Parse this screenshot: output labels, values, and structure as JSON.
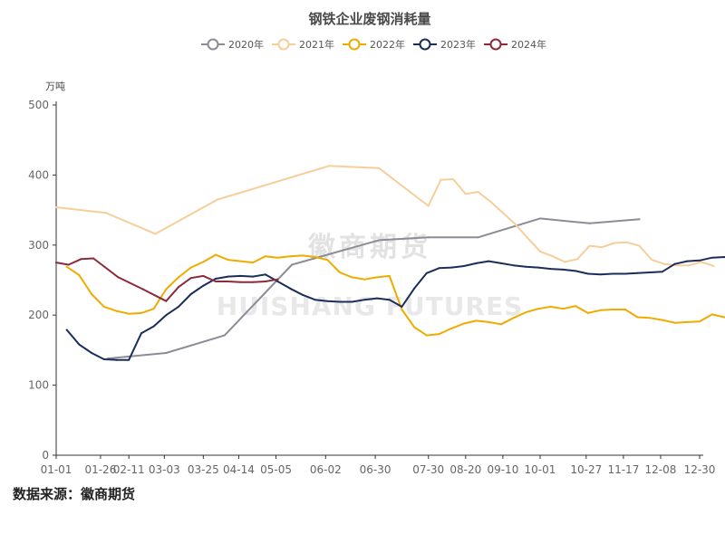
{
  "source_text": "数据来源：徽商期货",
  "watermark": {
    "cn": "徽商期货",
    "en": "HUISHANG FUTURES"
  },
  "chart_data": {
    "type": "line",
    "title": "钢铁企业废钢消耗量",
    "ylabel": "万吨",
    "xlabel": "",
    "ylim": [
      0,
      500
    ],
    "yticks": [
      0,
      100,
      200,
      300,
      400,
      500
    ],
    "xlim": [
      "01-01",
      "12-30"
    ],
    "xticks": [
      "01-01",
      "01-26",
      "02-11",
      "03-03",
      "03-25",
      "04-14",
      "05-05",
      "06-02",
      "06-30",
      "07-30",
      "08-20",
      "09-10",
      "10-01",
      "10-27",
      "11-17",
      "12-08",
      "12-30"
    ],
    "grid": false,
    "legend_position": "top-center",
    "series": [
      {
        "name": "2020年",
        "color": "#8c8c96",
        "points": [
          [
            "01-30",
            138
          ],
          [
            "03-04",
            146
          ],
          [
            "04-06",
            171
          ],
          [
            "05-14",
            272
          ],
          [
            "07-02",
            307
          ],
          [
            "07-30",
            311
          ],
          [
            "08-27",
            311
          ],
          [
            "10-01",
            338
          ],
          [
            "10-29",
            331
          ],
          [
            "11-26",
            337
          ]
        ]
      },
      {
        "name": "2021年",
        "color": "#f6ce9a",
        "points": [
          [
            "01-01",
            354
          ],
          [
            "01-29",
            346
          ],
          [
            "02-26",
            316
          ],
          [
            "04-02",
            365
          ],
          [
            "06-04",
            413
          ],
          [
            "07-02",
            410
          ],
          [
            "07-30",
            356
          ],
          [
            "08-06",
            393
          ],
          [
            "08-13",
            394
          ],
          [
            "08-20",
            373
          ],
          [
            "08-27",
            376
          ],
          [
            "09-03",
            362
          ],
          [
            "09-17",
            330
          ],
          [
            "09-24",
            310
          ],
          [
            "10-01",
            291
          ],
          [
            "10-08",
            284
          ],
          [
            "10-15",
            276
          ],
          [
            "10-22",
            280
          ],
          [
            "10-29",
            299
          ],
          [
            "11-05",
            297
          ],
          [
            "11-12",
            303
          ],
          [
            "11-19",
            304
          ],
          [
            "11-26",
            299
          ],
          [
            "12-03",
            279
          ],
          [
            "12-10",
            273
          ],
          [
            "12-17",
            271
          ],
          [
            "12-24",
            271
          ],
          [
            "12-31",
            276
          ],
          [
            "01-07",
            270
          ]
        ]
      },
      {
        "name": "2022年",
        "color": "#f0ab00",
        "points": [
          [
            "01-07",
            269
          ],
          [
            "01-14",
            257
          ],
          [
            "01-21",
            230
          ],
          [
            "01-28",
            212
          ],
          [
            "02-04",
            206
          ],
          [
            "02-11",
            202
          ],
          [
            "02-18",
            203
          ],
          [
            "02-25",
            209
          ],
          [
            "03-04",
            237
          ],
          [
            "03-11",
            254
          ],
          [
            "03-18",
            268
          ],
          [
            "03-25",
            276
          ],
          [
            "04-01",
            286
          ],
          [
            "04-08",
            279
          ],
          [
            "04-15",
            277
          ],
          [
            "04-22",
            275
          ],
          [
            "04-29",
            284
          ],
          [
            "05-06",
            282
          ],
          [
            "05-13",
            284
          ],
          [
            "05-20",
            285
          ],
          [
            "05-27",
            283
          ],
          [
            "06-03",
            279
          ],
          [
            "06-10",
            261
          ],
          [
            "06-17",
            254
          ],
          [
            "06-24",
            251
          ],
          [
            "07-01",
            254
          ],
          [
            "07-08",
            256
          ],
          [
            "07-15",
            208
          ],
          [
            "07-22",
            183
          ],
          [
            "07-29",
            171
          ],
          [
            "08-05",
            173
          ],
          [
            "08-12",
            181
          ],
          [
            "08-19",
            188
          ],
          [
            "08-26",
            192
          ],
          [
            "09-02",
            190
          ],
          [
            "09-09",
            187
          ],
          [
            "09-16",
            196
          ],
          [
            "09-23",
            204
          ],
          [
            "09-30",
            209
          ],
          [
            "10-07",
            212
          ],
          [
            "10-14",
            209
          ],
          [
            "10-21",
            213
          ],
          [
            "10-28",
            203
          ],
          [
            "11-04",
            207
          ],
          [
            "11-11",
            208
          ],
          [
            "11-18",
            208
          ],
          [
            "11-25",
            197
          ],
          [
            "12-02",
            196
          ],
          [
            "12-09",
            193
          ],
          [
            "12-16",
            189
          ],
          [
            "12-23",
            190
          ],
          [
            "12-30",
            191
          ],
          [
            "01-06",
            201
          ],
          [
            "01-13",
            197
          ],
          [
            "01-20",
            193
          ]
        ]
      },
      {
        "name": "2023年",
        "color": "#1b2e5a",
        "points": [
          [
            "01-07",
            179
          ],
          [
            "01-14",
            158
          ],
          [
            "01-21",
            146
          ],
          [
            "01-28",
            137
          ],
          [
            "02-04",
            136
          ],
          [
            "02-11",
            136
          ],
          [
            "02-18",
            174
          ],
          [
            "02-25",
            184
          ],
          [
            "03-04",
            200
          ],
          [
            "03-11",
            212
          ],
          [
            "03-18",
            230
          ],
          [
            "03-25",
            242
          ],
          [
            "04-01",
            252
          ],
          [
            "04-08",
            255
          ],
          [
            "04-15",
            256
          ],
          [
            "04-22",
            255
          ],
          [
            "04-29",
            258
          ],
          [
            "05-06",
            248
          ],
          [
            "05-13",
            238
          ],
          [
            "05-20",
            229
          ],
          [
            "05-27",
            222
          ],
          [
            "06-03",
            220
          ],
          [
            "06-10",
            219
          ],
          [
            "06-17",
            219
          ],
          [
            "06-24",
            222
          ],
          [
            "07-01",
            224
          ],
          [
            "07-08",
            222
          ],
          [
            "07-15",
            212
          ],
          [
            "07-22",
            238
          ],
          [
            "07-29",
            260
          ],
          [
            "08-05",
            267
          ],
          [
            "08-12",
            268
          ],
          [
            "08-19",
            270
          ],
          [
            "08-26",
            274
          ],
          [
            "09-02",
            277
          ],
          [
            "09-09",
            274
          ],
          [
            "09-16",
            271
          ],
          [
            "09-23",
            269
          ],
          [
            "09-30",
            268
          ],
          [
            "10-07",
            266
          ],
          [
            "10-14",
            265
          ],
          [
            "10-21",
            263
          ],
          [
            "10-28",
            259
          ],
          [
            "11-04",
            258
          ],
          [
            "11-11",
            259
          ],
          [
            "11-18",
            259
          ],
          [
            "11-25",
            260
          ],
          [
            "12-02",
            261
          ],
          [
            "12-09",
            262
          ],
          [
            "12-16",
            273
          ],
          [
            "12-23",
            277
          ],
          [
            "12-30",
            278
          ],
          [
            "01-06",
            282
          ],
          [
            "01-13",
            283
          ],
          [
            "01-20",
            279
          ]
        ]
      },
      {
        "name": "2024年",
        "color": "#8c2a3c",
        "points": [
          [
            "01-01",
            275
          ],
          [
            "01-08",
            272
          ],
          [
            "01-15",
            280
          ],
          [
            "01-22",
            281
          ],
          [
            "02-05",
            254
          ],
          [
            "02-19",
            237
          ],
          [
            "03-04",
            220
          ],
          [
            "03-11",
            240
          ],
          [
            "03-18",
            253
          ],
          [
            "03-25",
            256
          ],
          [
            "04-01",
            248
          ],
          [
            "04-08",
            248
          ],
          [
            "04-15",
            247
          ],
          [
            "04-22",
            247
          ],
          [
            "04-29",
            248
          ],
          [
            "05-06",
            251
          ]
        ]
      }
    ]
  }
}
